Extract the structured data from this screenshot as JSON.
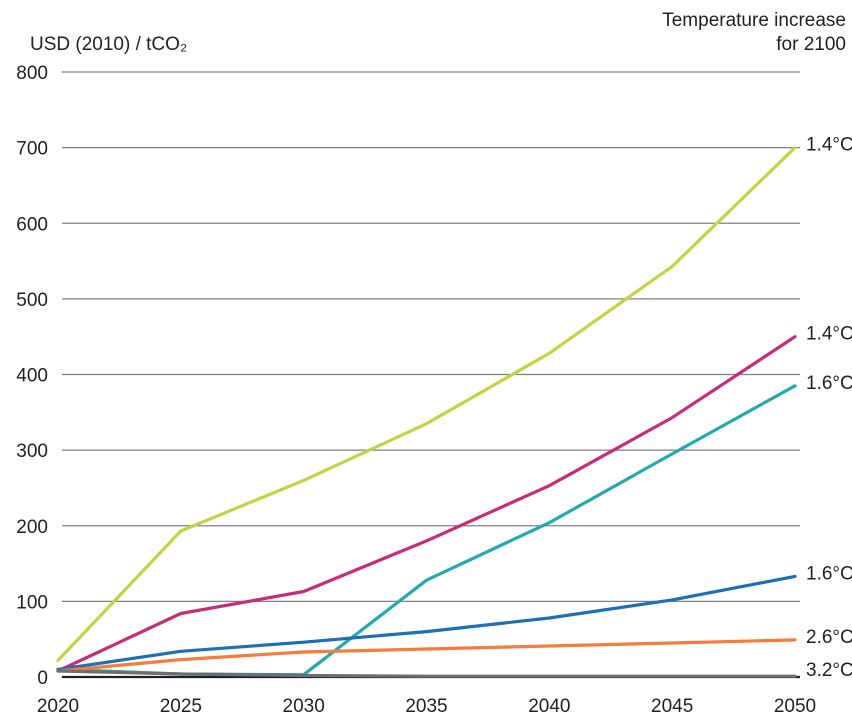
{
  "chart_data": {
    "type": "line",
    "ylabel": "USD (2010) / tCO₂",
    "legend_title": "Temperature increase for 2100",
    "legend_title_lines": [
      "Temperature increase",
      "for 2100"
    ],
    "x": [
      2020,
      2025,
      2030,
      2035,
      2040,
      2045,
      2050
    ],
    "xticks": [
      "2020",
      "2025",
      "2030",
      "2035",
      "2040",
      "2045",
      "2050"
    ],
    "yticks": [
      "0",
      "100",
      "200",
      "300",
      "400",
      "500",
      "600",
      "700",
      "800"
    ],
    "ylim": [
      0,
      800
    ],
    "xlim": [
      2020,
      2050
    ],
    "grid": true,
    "series": [
      {
        "end_label": "1.4°C",
        "color": "#c3d343",
        "points": [
          [
            2020,
            22
          ],
          [
            2025,
            193
          ],
          [
            2030,
            260
          ],
          [
            2035,
            335
          ],
          [
            2040,
            428
          ],
          [
            2045,
            543
          ],
          [
            2050,
            700
          ]
        ]
      },
      {
        "end_label": "1.4°C",
        "color": "#c72b7b",
        "points": [
          [
            2020,
            8
          ],
          [
            2025,
            84
          ],
          [
            2030,
            113
          ],
          [
            2035,
            180
          ],
          [
            2040,
            253
          ],
          [
            2045,
            343
          ],
          [
            2050,
            450
          ]
        ]
      },
      {
        "end_label": "1.6°C",
        "color": "#23a9b2",
        "points": [
          [
            2020,
            10
          ],
          [
            2025,
            4
          ],
          [
            2030,
            3
          ],
          [
            2035,
            128
          ],
          [
            2040,
            204
          ],
          [
            2045,
            295
          ],
          [
            2050,
            385
          ]
        ]
      },
      {
        "end_label": "1.6°C",
        "color": "#1f6fb4",
        "points": [
          [
            2020,
            10
          ],
          [
            2025,
            34
          ],
          [
            2030,
            46
          ],
          [
            2035,
            60
          ],
          [
            2040,
            78
          ],
          [
            2045,
            102
          ],
          [
            2050,
            133
          ]
        ]
      },
      {
        "end_label": "2.6°C",
        "color": "#f47c3c",
        "points": [
          [
            2020,
            8
          ],
          [
            2025,
            23
          ],
          [
            2030,
            33
          ],
          [
            2035,
            37
          ],
          [
            2040,
            41
          ],
          [
            2045,
            45
          ],
          [
            2050,
            49
          ]
        ]
      },
      {
        "end_label": "3.2°C",
        "color": "#6d6e71",
        "points": [
          [
            2020,
            8
          ],
          [
            2025,
            4
          ],
          [
            2030,
            2
          ],
          [
            2035,
            1
          ],
          [
            2040,
            1
          ],
          [
            2045,
            1
          ],
          [
            2050,
            1
          ]
        ]
      }
    ]
  }
}
